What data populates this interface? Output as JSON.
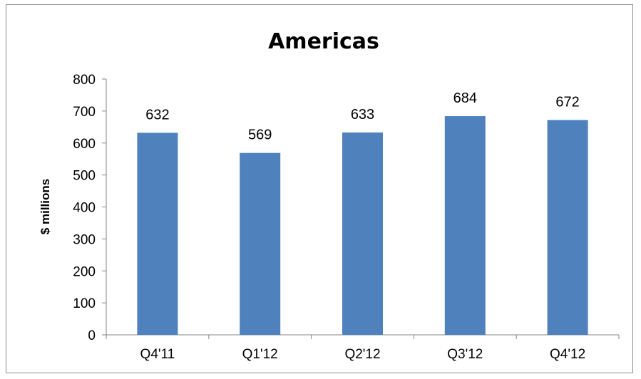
{
  "chart_data": {
    "type": "bar",
    "title": "Americas",
    "xlabel": "",
    "ylabel": "$ millions",
    "categories": [
      "Q4'11",
      "Q1'12",
      "Q2'12",
      "Q3'12",
      "Q4'12"
    ],
    "values": [
      632,
      569,
      633,
      684,
      672
    ],
    "data_labels": [
      "632",
      "569",
      "633",
      "684",
      "672"
    ],
    "ylim": [
      0,
      800
    ],
    "yticks": [
      0,
      100,
      200,
      300,
      400,
      500,
      600,
      700,
      800
    ],
    "ytick_labels": [
      "0",
      "100",
      "200",
      "300",
      "400",
      "500",
      "600",
      "700",
      "800"
    ],
    "grid": false,
    "legend": "none",
    "bar_color": "#4f81bd"
  }
}
